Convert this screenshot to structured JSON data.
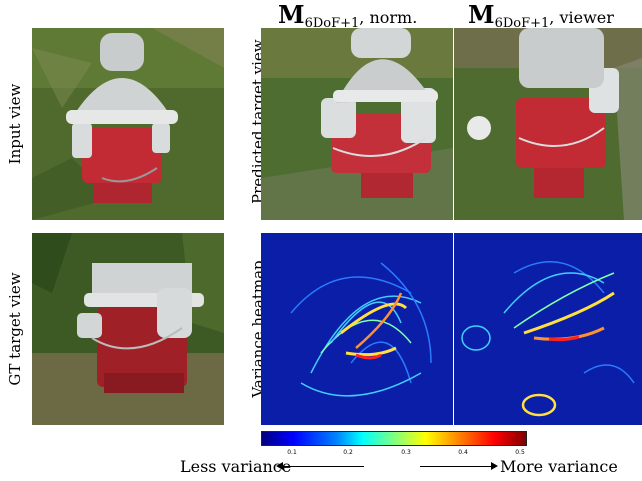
{
  "columns": {
    "normalized": {
      "main": "M",
      "subscript": "6DoF+1",
      "suffix": ", norm."
    },
    "viewer": {
      "main": "M",
      "subscript": "6DoF+1",
      "suffix": ", viewer"
    }
  },
  "row_labels": {
    "input_view": "Input view",
    "gt_target_view": "GT target view",
    "predicted_target_view": "Predicted target view",
    "variance_heatmap": "Variance heatmap"
  },
  "colorbar": {
    "ticks": [
      "0.1",
      "0.2",
      "0.3",
      "0.4",
      "0.5"
    ],
    "colormap": "jet",
    "colors": {
      "low": "#00007f",
      "mid": "#00ffff",
      "high": "#7f0000"
    }
  },
  "legend": {
    "less": "Less variance",
    "more": "More variance"
  }
}
